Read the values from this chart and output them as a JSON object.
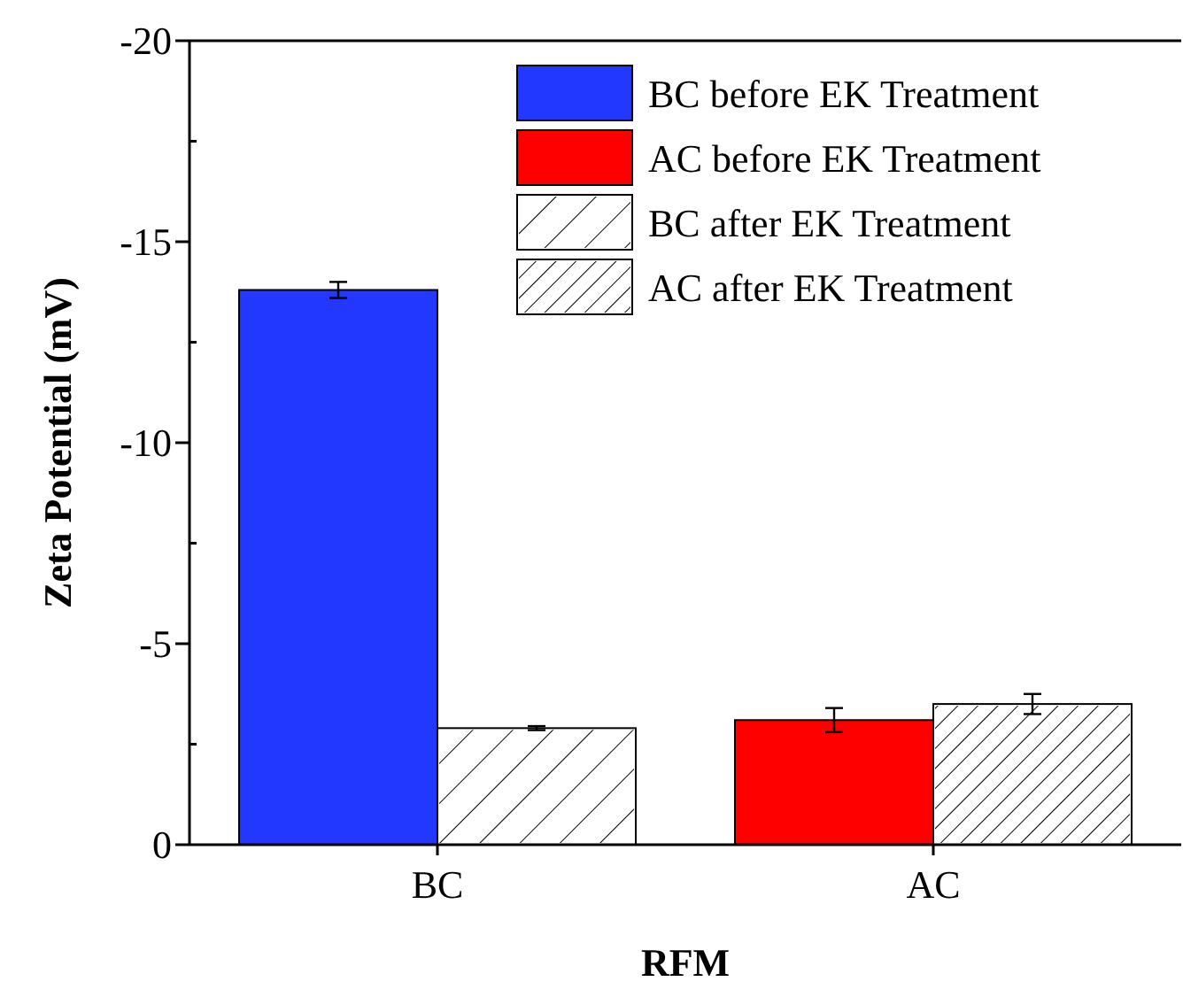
{
  "chart_data": {
    "type": "bar",
    "xlabel": "RFM",
    "ylabel": "Zeta Potential (mV)",
    "categories": [
      "BC",
      "AC"
    ],
    "series": [
      {
        "name": "BC before EK Treatment",
        "color": "#2238ff",
        "values": [
          -13.8,
          null
        ],
        "errors": [
          0.2,
          null
        ]
      },
      {
        "name": "AC before EK Treatment",
        "color": "#ff0000",
        "values": [
          null,
          -3.1
        ],
        "errors": [
          null,
          0.3
        ]
      },
      {
        "name": "BC after EK Treatment",
        "color": "#ffffff",
        "values": [
          -2.9,
          null
        ],
        "errors": [
          0.05,
          null
        ]
      },
      {
        "name": "AC after EK Treatment",
        "color": "#ffffff",
        "values": [
          null,
          -3.5
        ],
        "errors": [
          null,
          0.25
        ]
      }
    ],
    "ylim": [
      0,
      -20
    ],
    "yticks": [
      0,
      {
        "value": -2.5,
        "label": null
      },
      -5,
      {
        "value": -7.5,
        "label": null
      },
      -10,
      {
        "value": -12.5,
        "label": null
      },
      -15,
      {
        "value": -17.5,
        "label": null
      },
      -20
    ],
    "legend": "top right",
    "grid": false
  }
}
